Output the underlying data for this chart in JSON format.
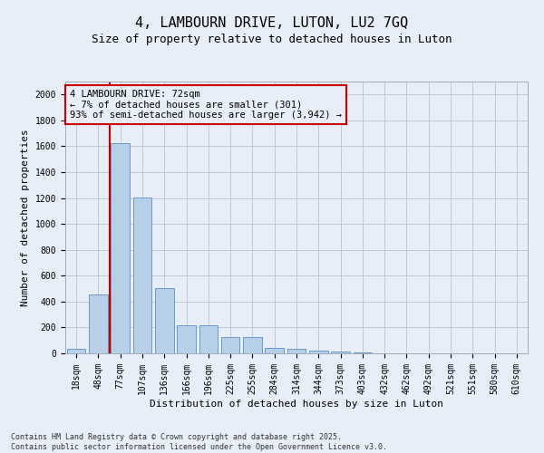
{
  "title": "4, LAMBOURN DRIVE, LUTON, LU2 7GQ",
  "subtitle": "Size of property relative to detached houses in Luton",
  "xlabel": "Distribution of detached houses by size in Luton",
  "ylabel": "Number of detached properties",
  "categories": [
    "18sqm",
    "48sqm",
    "77sqm",
    "107sqm",
    "136sqm",
    "166sqm",
    "196sqm",
    "225sqm",
    "255sqm",
    "284sqm",
    "314sqm",
    "344sqm",
    "373sqm",
    "403sqm",
    "432sqm",
    "462sqm",
    "492sqm",
    "521sqm",
    "551sqm",
    "580sqm",
    "610sqm"
  ],
  "values": [
    35,
    455,
    1625,
    1205,
    505,
    220,
    220,
    125,
    125,
    45,
    38,
    22,
    15,
    8,
    0,
    0,
    0,
    0,
    0,
    0,
    0
  ],
  "bar_color": "#b8cfe8",
  "bar_edge_color": "#5b8fc9",
  "vline_x": 1.5,
  "vline_color": "#c00000",
  "annotation_title": "4 LAMBOURN DRIVE: 72sqm",
  "annotation_line1": "← 7% of detached houses are smaller (301)",
  "annotation_line2": "93% of semi-detached houses are larger (3,942) →",
  "annotation_box_color": "#cc0000",
  "background_color": "#e8eef8",
  "ylim": [
    0,
    2100
  ],
  "yticks": [
    0,
    200,
    400,
    600,
    800,
    1000,
    1200,
    1400,
    1600,
    1800,
    2000
  ],
  "footer_line1": "Contains HM Land Registry data © Crown copyright and database right 2025.",
  "footer_line2": "Contains public sector information licensed under the Open Government Licence v3.0.",
  "title_fontsize": 11,
  "subtitle_fontsize": 9,
  "axis_label_fontsize": 8,
  "tick_fontsize": 7,
  "annotation_fontsize": 7.5,
  "footer_fontsize": 6
}
